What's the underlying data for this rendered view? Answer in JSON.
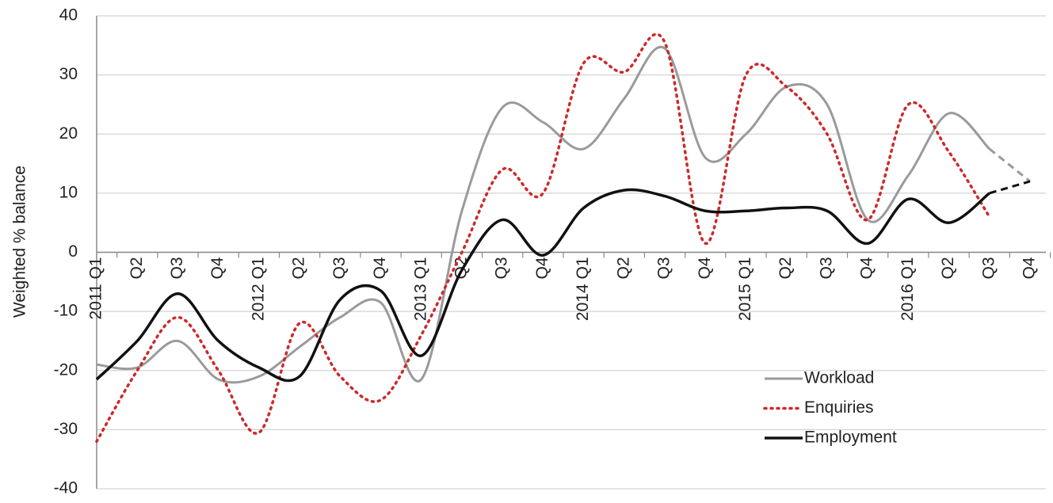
{
  "chart_data": {
    "type": "line",
    "y_label": "Weighted % balance",
    "categories": [
      "2011 Q1",
      "Q2",
      "Q3",
      "Q4",
      "2012 Q1",
      "Q2",
      "Q3",
      "Q4",
      "2013 Q1",
      "Q2",
      "Q3",
      "Q4",
      "2014 Q1",
      "Q2",
      "Q3",
      "Q4",
      "2015 Q1",
      "Q2",
      "Q3",
      "Q4",
      "2016 Q1",
      "Q2",
      "Q3",
      "Q4"
    ],
    "series": [
      {
        "name": "Workload",
        "color": "#9a9a9a",
        "style": "solid",
        "dashed_last_segment": true,
        "values": [
          -19,
          -19.5,
          -15,
          -21.5,
          -21,
          -16,
          -11,
          -8.5,
          -21.5,
          7,
          24.5,
          22,
          17.5,
          26,
          34.5,
          16,
          20,
          28,
          25,
          5.5,
          13,
          23.5,
          17.5,
          12
        ]
      },
      {
        "name": "Enquiries",
        "color": "#cc2a2a",
        "style": "dotted",
        "dashed_last_segment": false,
        "values": [
          -32,
          -20,
          -11,
          -20,
          -30.5,
          -12,
          -21,
          -25,
          -14,
          0,
          14,
          10,
          32,
          30.5,
          35.5,
          1.5,
          30,
          28,
          20,
          5.5,
          25,
          17,
          6,
          null
        ]
      },
      {
        "name": "Employment",
        "color": "#111111",
        "style": "solid",
        "dashed_last_segment": true,
        "values": [
          -21.5,
          -15,
          -7,
          -15,
          -19.5,
          -21,
          -8,
          -6.5,
          -17.5,
          -3,
          5.5,
          -0.5,
          7.5,
          10.5,
          9.5,
          7,
          7,
          7.5,
          7,
          1.5,
          9,
          5,
          10,
          12
        ]
      }
    ],
    "ylim": [
      -40,
      40
    ],
    "yticks": [
      -40,
      -30,
      -20,
      -10,
      0,
      10,
      20,
      30,
      40
    ],
    "grid": true,
    "legend": "lower right"
  }
}
